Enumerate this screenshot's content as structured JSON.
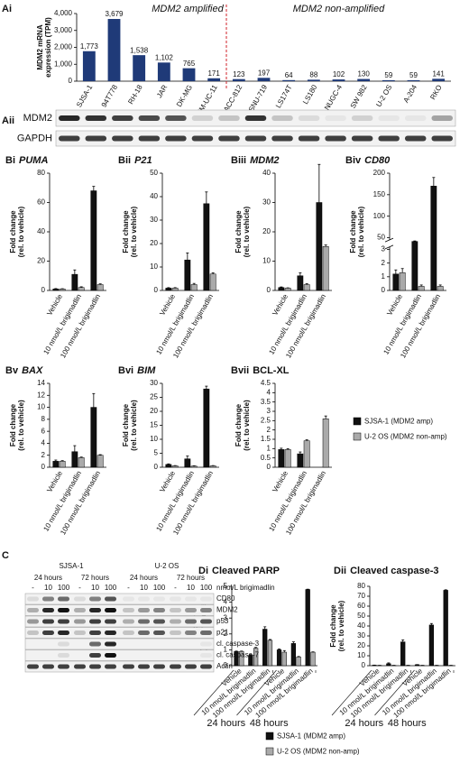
{
  "chart_data": [
    {
      "type": "bar",
      "panel": "Ai",
      "ylabel": [
        "MDM2 mRNA",
        "expression (TPM)"
      ],
      "annotations": [
        "MDM2 amplified",
        "MDM2 non-amplified"
      ],
      "categories": [
        "SJSA-1",
        "94T778",
        "RH-18",
        "JAR",
        "DK-MG",
        "UM-UC-11",
        "UACC-812",
        "SNU-719",
        "LS174T",
        "LS180",
        "NUGC-4",
        "SW 982",
        "U-2 OS",
        "A-204",
        "RKO"
      ],
      "values": [
        1773,
        3679,
        1538,
        1102,
        765,
        171,
        123,
        197,
        64,
        88,
        102,
        130,
        59,
        59,
        141
      ],
      "value_labels": [
        "1,773",
        "3,679",
        "1,538",
        "1,102",
        "765",
        "171",
        "123",
        "197",
        "64",
        "88",
        "102",
        "130",
        "59",
        "59",
        "141"
      ],
      "color": "#1f3a78",
      "ylim": [
        0,
        4000
      ],
      "yticks": [
        0,
        {
          "value": 1000,
          "label": "1,000"
        },
        {
          "value": 2000,
          "label": "2,000"
        },
        {
          "value": 3000,
          "label": "3,000"
        },
        {
          "value": 4000,
          "label": "4,000"
        }
      ]
    },
    {
      "type": "bar",
      "panel": "Bi",
      "title": "PUMA",
      "ylabel": [
        "Fold change",
        "(rel. to vehicle)"
      ],
      "categories": [
        "Vehicle",
        "10 nmol/L brigimadlin",
        "100 nmol/L brigimadlin"
      ],
      "series": [
        {
          "color": "#111111",
          "values": [
            1,
            11,
            68
          ],
          "errors": [
            0.3,
            3,
            3
          ]
        },
        {
          "color": "#aaaaaa",
          "values": [
            1,
            2,
            4
          ],
          "errors": [
            0.2,
            0.5,
            0.5
          ]
        }
      ],
      "ylim": [
        0,
        80
      ],
      "yticks": [
        0,
        20,
        40,
        60,
        80
      ]
    },
    {
      "type": "bar",
      "panel": "Bii",
      "title": "P21",
      "ylabel": [
        "Fold change",
        "(rel. to vehicle)"
      ],
      "categories": [
        "Vehicle",
        "10 nmol/L brigimadlin",
        "100 nmol/L brigimadlin"
      ],
      "series": [
        {
          "color": "#111111",
          "values": [
            1,
            13,
            37
          ],
          "errors": [
            0.2,
            3,
            5
          ]
        },
        {
          "color": "#aaaaaa",
          "values": [
            1,
            2.5,
            7
          ],
          "errors": [
            0.2,
            0.5,
            0.5
          ]
        }
      ],
      "ylim": [
        0,
        50
      ],
      "yticks": [
        0,
        10,
        20,
        30,
        40,
        50
      ]
    },
    {
      "type": "bar",
      "panel": "Biii",
      "title": "MDM2",
      "ylabel": [
        "Fold change",
        "(rel. to vehicle)"
      ],
      "categories": [
        "Vehicle",
        "10 nmol/L brigimadlin",
        "100 nmol/L brigimadlin"
      ],
      "series": [
        {
          "color": "#111111",
          "values": [
            1,
            5,
            30
          ],
          "errors": [
            0.2,
            1,
            13
          ]
        },
        {
          "color": "#aaaaaa",
          "values": [
            0.8,
            2,
            15
          ],
          "errors": [
            0.1,
            0.3,
            0.5
          ]
        }
      ],
      "ylim": [
        0,
        40
      ],
      "yticks": [
        0,
        10,
        20,
        30,
        40
      ]
    },
    {
      "type": "bar",
      "panel": "Biv",
      "title": "CD80",
      "ylabel": [
        "Fold change",
        "(rel. to vehicle)"
      ],
      "categories": [
        "Vehicle",
        "10 nmol/L brigimadlin",
        "100 nmol/L brigimadlin"
      ],
      "series": [
        {
          "color": "#111111",
          "values": [
            1.2,
            35,
            170
          ],
          "errors": [
            0.3,
            2,
            20
          ]
        },
        {
          "color": "#aaaaaa",
          "values": [
            1.3,
            0.3,
            0.3
          ],
          "errors": [
            0.3,
            0.1,
            0.1
          ]
        }
      ],
      "ylim": [
        0,
        200
      ],
      "ybreak": [
        3,
        50
      ],
      "yticks": [
        0,
        1,
        2,
        3,
        50,
        100,
        150,
        200
      ]
    },
    {
      "type": "bar",
      "panel": "Bv",
      "title": "BAX",
      "ylabel": [
        "Fold change",
        "(rel. to vehicle)"
      ],
      "categories": [
        "Vehicle",
        "10 nmol/L brigimadlin",
        "100 nmol/L brigimadlin"
      ],
      "series": [
        {
          "color": "#111111",
          "values": [
            1,
            2.6,
            10
          ],
          "errors": [
            0.2,
            1,
            2.3
          ]
        },
        {
          "color": "#aaaaaa",
          "values": [
            1,
            1.6,
            2
          ],
          "errors": [
            0.1,
            0.1,
            0.1
          ]
        }
      ],
      "ylim": [
        0,
        14
      ],
      "yticks": [
        0,
        2,
        4,
        6,
        8,
        10,
        12,
        14
      ]
    },
    {
      "type": "bar",
      "panel": "Bvi",
      "title": "BIM",
      "ylabel": [
        "Fold change",
        "(rel. to vehicle)"
      ],
      "categories": [
        "Vehicle",
        "10 nmol/L brigimadlin",
        "100 nmol/L brigimadlin"
      ],
      "series": [
        {
          "color": "#111111",
          "values": [
            1,
            3,
            28
          ],
          "errors": [
            0.2,
            1,
            1
          ]
        },
        {
          "color": "#aaaaaa",
          "values": [
            0.5,
            0.4,
            0.5
          ],
          "errors": [
            0.1,
            0.1,
            0.1
          ]
        }
      ],
      "ylim": [
        0,
        30
      ],
      "yticks": [
        0,
        5,
        10,
        15,
        20,
        25,
        30
      ]
    },
    {
      "type": "bar",
      "panel": "Bvii",
      "title": "BCL-XL",
      "ylabel": [
        "Fold change",
        "(rel. to vehicle)"
      ],
      "categories": [
        "Vehicle",
        "10 nmol/L brigimadlin",
        "100 nmol/L brigimadlin"
      ],
      "series": [
        {
          "name": "SJSA-1 (MDM2 amp)",
          "color": "#111111",
          "values": [
            0.95,
            0.72,
            null
          ],
          "errors": [
            0.07,
            0.1,
            null
          ]
        },
        {
          "name": "U-2 OS (MDM2 non-amp)",
          "color": "#aaaaaa",
          "values": [
            0.95,
            1.42,
            2.6
          ],
          "errors": [
            0.05,
            0.05,
            0.15
          ]
        }
      ],
      "ylim": [
        0,
        4.5
      ],
      "yticks": [
        0,
        0.5,
        1,
        1.5,
        2,
        2.5,
        3,
        3.5,
        4,
        4.5
      ],
      "legend": "right"
    },
    {
      "type": "bar",
      "panel": "Di",
      "title": "Cleaved PARP",
      "ylabel": [
        "Fold change",
        "(rel. to vehicle)"
      ],
      "categories": [
        "Vehicle",
        "10 nmol/L brigimadlin",
        "100 nmol/L brigimadlin",
        "Vehicle",
        "10 nmol/L brigimadlin",
        "100 nmol/L brigimadlin"
      ],
      "group_labels": [
        "24 hours",
        "48 hours"
      ],
      "series": [
        {
          "color": "#111111",
          "values": [
            0.9,
            0.65,
            2.3,
            1.0,
            1.4,
            4.8
          ],
          "errors": [
            0.02,
            0.05,
            0.15,
            0.05,
            0.1,
            0.02
          ]
        },
        {
          "color": "#aaaaaa",
          "values": [
            0.9,
            1.1,
            1.6,
            0.85,
            0.55,
            0.85
          ],
          "errors": [
            0.02,
            0.05,
            0.05,
            0.1,
            0.03,
            0.02
          ]
        }
      ],
      "ylim": [
        0,
        5
      ],
      "yticks": [
        0,
        1,
        2,
        3,
        4,
        5
      ]
    },
    {
      "type": "bar",
      "panel": "Dii",
      "title": "Cleaved caspase-3",
      "ylabel": [
        "Fold change",
        "(rel. to vehicle)"
      ],
      "categories": [
        "Vehicle",
        "10 nmol/L brigimadlin",
        "100 nmol/L brigimadlin",
        "Vehicle",
        "10 nmol/L brigimadlin",
        "100 nmol/L brigimadlin"
      ],
      "group_labels": [
        "24 hours",
        "48 hours"
      ],
      "series": [
        {
          "name": "SJSA-1 (MDM2 amp)",
          "color": "#111111",
          "values": [
            0.5,
            2,
            24,
            1,
            41,
            76
          ],
          "errors": [
            0.1,
            0.8,
            2,
            0.1,
            1.5,
            0.5
          ]
        },
        {
          "name": "U-2 OS (MDM2 non-amp)",
          "color": "#aaaaaa",
          "values": [
            0.3,
            0.3,
            0.3,
            0.3,
            0.3,
            0.3
          ],
          "errors": [
            0.05,
            0.05,
            0.05,
            0.05,
            0.05,
            0.05
          ]
        }
      ],
      "ylim": [
        0,
        80
      ],
      "yticks": [
        0,
        10,
        20,
        30,
        40,
        50,
        60,
        70,
        80
      ],
      "legend": "bottom"
    }
  ],
  "blots": {
    "Aii": {
      "panel": "Aii",
      "rows": [
        "MDM2",
        "GAPDH"
      ]
    },
    "C": {
      "panel": "C",
      "cell_lines": [
        "SJSA-1",
        "U-2 OS"
      ],
      "timepoints": [
        "24 hours",
        "72 hours",
        "24 hours",
        "72 hours"
      ],
      "doses": [
        "-",
        "10",
        "100",
        "-",
        "10",
        "100",
        "-",
        "10",
        "100",
        "-",
        "10",
        "100"
      ],
      "treatment": "nmol/L brigimadlin",
      "rows": [
        "CD80",
        "MDM2",
        "p53",
        "p21",
        "cl. caspase-3",
        "cl. caspase-7",
        "Actin"
      ]
    }
  }
}
